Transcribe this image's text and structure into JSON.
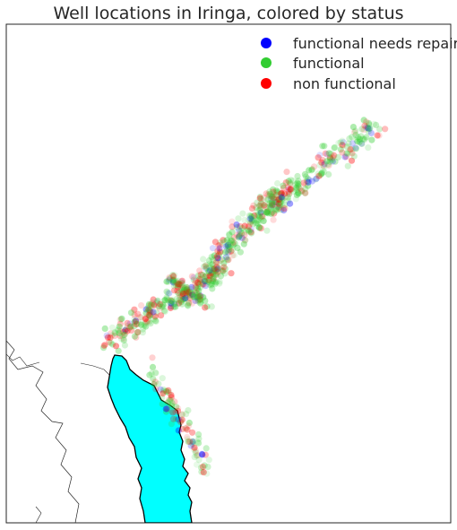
{
  "title": "Well locations in Iringa, colored by status",
  "legend": [
    {
      "label": "functional needs repair",
      "color": "#0000ff"
    },
    {
      "label": "functional",
      "color": "#32cd32"
    },
    {
      "label": "non functional",
      "color": "#ff0000"
    }
  ],
  "colors": {
    "lake": "#00ffff",
    "background": "#ffffff",
    "border": "#262626"
  },
  "point_opacity": 0.1,
  "chart_data": {
    "type": "scatter",
    "series": [
      {
        "name": "functional needs repair",
        "color": "#0000ff"
      },
      {
        "name": "functional",
        "color": "#32cd32"
      },
      {
        "name": "non functional",
        "color": "#ff0000"
      }
    ]
  }
}
